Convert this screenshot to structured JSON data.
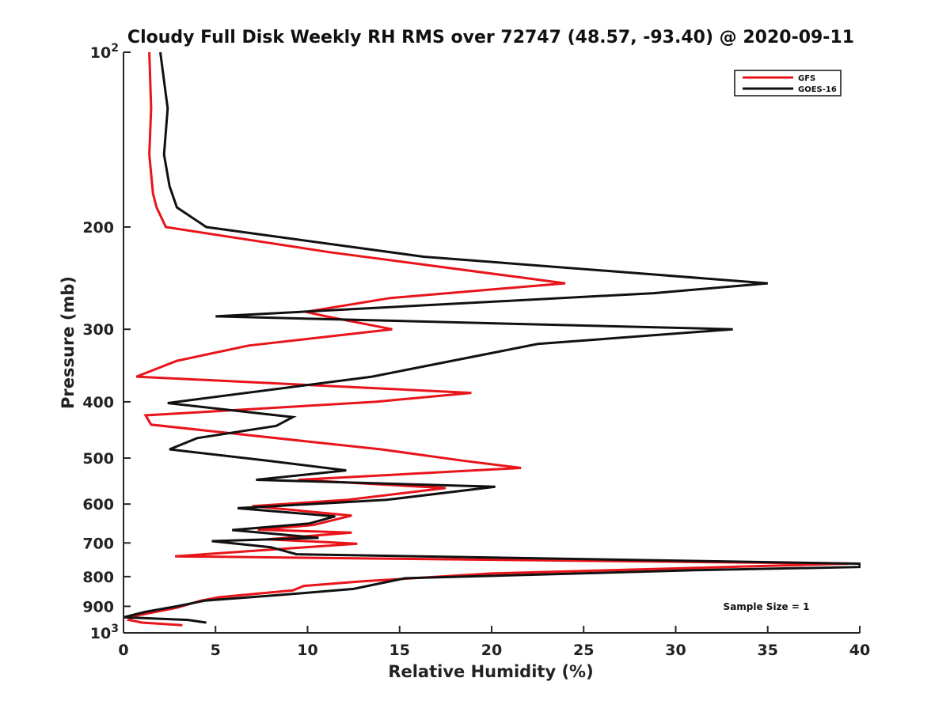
{
  "chart_data": {
    "type": "line",
    "title": "Cloudy Full Disk Weekly RH RMS over 72747 (48.57, -93.40) @ 2020-09-11",
    "xlabel": "Relative Humidity (%)",
    "ylabel": "Pressure (mb)",
    "xlim": [
      0,
      40
    ],
    "ylim": [
      100,
      1000
    ],
    "yscale": "log",
    "y_reversed": true,
    "grid": false,
    "legend_position": "top-right",
    "x_ticks": [
      0,
      5,
      10,
      15,
      20,
      25,
      30,
      35,
      40
    ],
    "y_ticks": [
      {
        "value": 100,
        "label": "10",
        "exp": "2"
      },
      {
        "value": 200,
        "label": "200"
      },
      {
        "value": 300,
        "label": "300"
      },
      {
        "value": 400,
        "label": "400"
      },
      {
        "value": 500,
        "label": "500"
      },
      {
        "value": 600,
        "label": "600"
      },
      {
        "value": 700,
        "label": "700"
      },
      {
        "value": 800,
        "label": "800"
      },
      {
        "value": 900,
        "label": "900"
      },
      {
        "value": 1000,
        "label": "10",
        "exp": "3"
      }
    ],
    "series": [
      {
        "name": "GFS",
        "color": "#e8141a",
        "points": [
          [
            1.4,
            100
          ],
          [
            1.5,
            125
          ],
          [
            1.4,
            150
          ],
          [
            1.6,
            175
          ],
          [
            1.8,
            185
          ],
          [
            2.3,
            200
          ],
          [
            11.2,
            221
          ],
          [
            24.0,
            250
          ],
          [
            14.5,
            265
          ],
          [
            9.9,
            280
          ],
          [
            11.0,
            285
          ],
          [
            14.6,
            300
          ],
          [
            6.8,
            320
          ],
          [
            2.9,
            340
          ],
          [
            0.7,
            362
          ],
          [
            18.9,
            386
          ],
          [
            13.7,
            400
          ],
          [
            1.2,
            422
          ],
          [
            1.5,
            438
          ],
          [
            14.0,
            483
          ],
          [
            18.4,
            505
          ],
          [
            21.6,
            520
          ],
          [
            9.5,
            545
          ],
          [
            17.5,
            563
          ],
          [
            12.2,
            590
          ],
          [
            7.0,
            605
          ],
          [
            12.4,
            628
          ],
          [
            10.3,
            652
          ],
          [
            7.3,
            664
          ],
          [
            12.4,
            672
          ],
          [
            7.8,
            690
          ],
          [
            12.7,
            702
          ],
          [
            2.8,
            738
          ],
          [
            39.4,
            760
          ],
          [
            20.0,
            790
          ],
          [
            13.0,
            815
          ],
          [
            9.8,
            830
          ],
          [
            9.2,
            845
          ],
          [
            5.2,
            868
          ],
          [
            4.2,
            880
          ],
          [
            2.9,
            905
          ],
          [
            0.6,
            935
          ],
          [
            0.3,
            950
          ],
          [
            1.0,
            960
          ],
          [
            3.2,
            970
          ]
        ]
      },
      {
        "name": "GOES-16",
        "color": "#111111",
        "points": [
          [
            2.0,
            100
          ],
          [
            2.4,
            125
          ],
          [
            2.2,
            150
          ],
          [
            2.5,
            170
          ],
          [
            2.9,
            185
          ],
          [
            4.5,
            200
          ],
          [
            16.3,
            225
          ],
          [
            35.0,
            250
          ],
          [
            28.8,
            260
          ],
          [
            5.0,
            285
          ],
          [
            33.1,
            300
          ],
          [
            22.5,
            318
          ],
          [
            13.5,
            362
          ],
          [
            2.4,
            402
          ],
          [
            9.2,
            425
          ],
          [
            8.3,
            440
          ],
          [
            4.0,
            462
          ],
          [
            2.5,
            483
          ],
          [
            7.8,
            505
          ],
          [
            12.1,
            525
          ],
          [
            7.2,
            545
          ],
          [
            20.2,
            560
          ],
          [
            14.3,
            590
          ],
          [
            6.2,
            610
          ],
          [
            11.5,
            630
          ],
          [
            10.1,
            648
          ],
          [
            5.9,
            665
          ],
          [
            10.6,
            686
          ],
          [
            4.8,
            695
          ],
          [
            8.0,
            712
          ],
          [
            9.4,
            732
          ],
          [
            40.0,
            760
          ],
          [
            40.0,
            770
          ],
          [
            31.0,
            780
          ],
          [
            15.3,
            805
          ],
          [
            12.5,
            840
          ],
          [
            8.6,
            860
          ],
          [
            4.4,
            880
          ],
          [
            2.9,
            900
          ],
          [
            1.2,
            920
          ],
          [
            0.0,
            940
          ],
          [
            3.5,
            950
          ],
          [
            4.5,
            960
          ]
        ]
      }
    ],
    "annotation": "Sample Size = 1"
  }
}
